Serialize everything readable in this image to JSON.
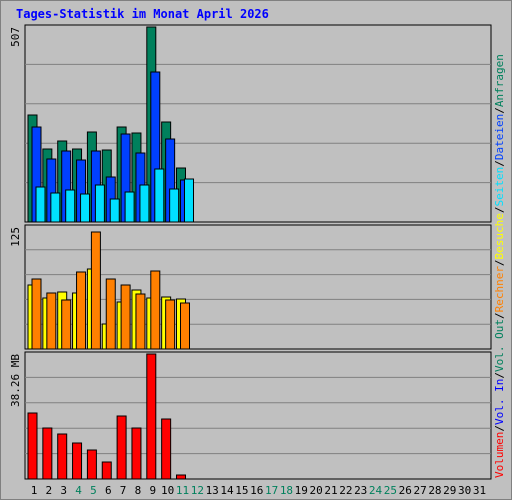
{
  "title": "Tages-Statistik im Monat April 2026",
  "colors": {
    "anfragen": "#00805c",
    "dateien": "#0040ff",
    "seiten": "#00e0ff",
    "besuche": "#ffff00",
    "rechner": "#ff8000",
    "vol_in": "#0000ff",
    "vol_out": "#00805c",
    "volumen": "#ff0000",
    "background": "#c0c0c0",
    "title": "#0000ff"
  },
  "right_legend": [
    {
      "text": "Volumen",
      "color": "#ff0000"
    },
    {
      "text": "Vol. In",
      "color": "#0000ff"
    },
    {
      "text": "Vol. Out",
      "color": "#00805c"
    },
    {
      "text": "Rechner",
      "color": "#ff8000"
    },
    {
      "text": "Besuche",
      "color": "#ffff00"
    },
    {
      "text": "Seiten",
      "color": "#00e0ff"
    },
    {
      "text": "Dateien",
      "color": "#0040ff"
    },
    {
      "text": "Anfragen",
      "color": "#00805c"
    }
  ],
  "chart_data": {
    "type": "bar",
    "title": "Tages-Statistik im Monat April 2026",
    "x": [
      "1",
      "2",
      "3",
      "4",
      "5",
      "6",
      "7",
      "8",
      "9",
      "10",
      "11",
      "12",
      "13",
      "14",
      "15",
      "16",
      "17",
      "18",
      "19",
      "20",
      "21",
      "22",
      "23",
      "24",
      "25",
      "26",
      "27",
      "28",
      "29",
      "30",
      "31"
    ],
    "x_label_colors": [
      "#000000",
      "#000000",
      "#000000",
      "#00805c",
      "#00805c",
      "#000000",
      "#000000",
      "#000000",
      "#000000",
      "#000000",
      "#00805c",
      "#00805c",
      "#000000",
      "#000000",
      "#000000",
      "#000000",
      "#00805c",
      "#00805c",
      "#000000",
      "#000000",
      "#000000",
      "#000000",
      "#000000",
      "#00805c",
      "#00805c",
      "#000000",
      "#000000",
      "#000000",
      "#000000",
      "#000000",
      "#000000"
    ],
    "panels": [
      {
        "ymax_label": "507",
        "ymax": 507,
        "series": [
          {
            "name": "Anfragen",
            "color": "#00805c",
            "values": [
              277,
              190,
              211,
              190,
              235,
              188,
              247,
              231,
              507,
              261,
              140
            ]
          },
          {
            "name": "Dateien",
            "color": "#0040ff",
            "values": [
              248,
              163,
              184,
              160,
              185,
              117,
              228,
              180,
              390,
              216,
              110
            ]
          },
          {
            "name": "Seiten",
            "color": "#00e0ff",
            "values": [
              90,
              75,
              82,
              74,
              97,
              60,
              79,
              95,
              138,
              87,
              111
            ]
          }
        ]
      },
      {
        "ymax_label": "125",
        "ymax": 125,
        "series": [
          {
            "name": "Besuche",
            "color": "#ffff00",
            "values": [
              66,
              52,
              58,
              57,
              82,
              26,
              48,
              60,
              52,
              53,
              51
            ]
          },
          {
            "name": "Rechner",
            "color": "#ff8000",
            "values": [
              72,
              57,
              50,
              79,
              120,
              72,
              66,
              56,
              80,
              50,
              47
            ]
          }
        ]
      },
      {
        "ymax_label": "38.26 MB",
        "ymax": 38.26,
        "series": [
          {
            "name": "Volumen",
            "color": "#ff0000",
            "values": [
              20.3,
              15.5,
              13.8,
              11.1,
              8.8,
              5.2,
              19.3,
              15.5,
              38.26,
              18.3,
              1.3
            ]
          }
        ]
      }
    ]
  }
}
